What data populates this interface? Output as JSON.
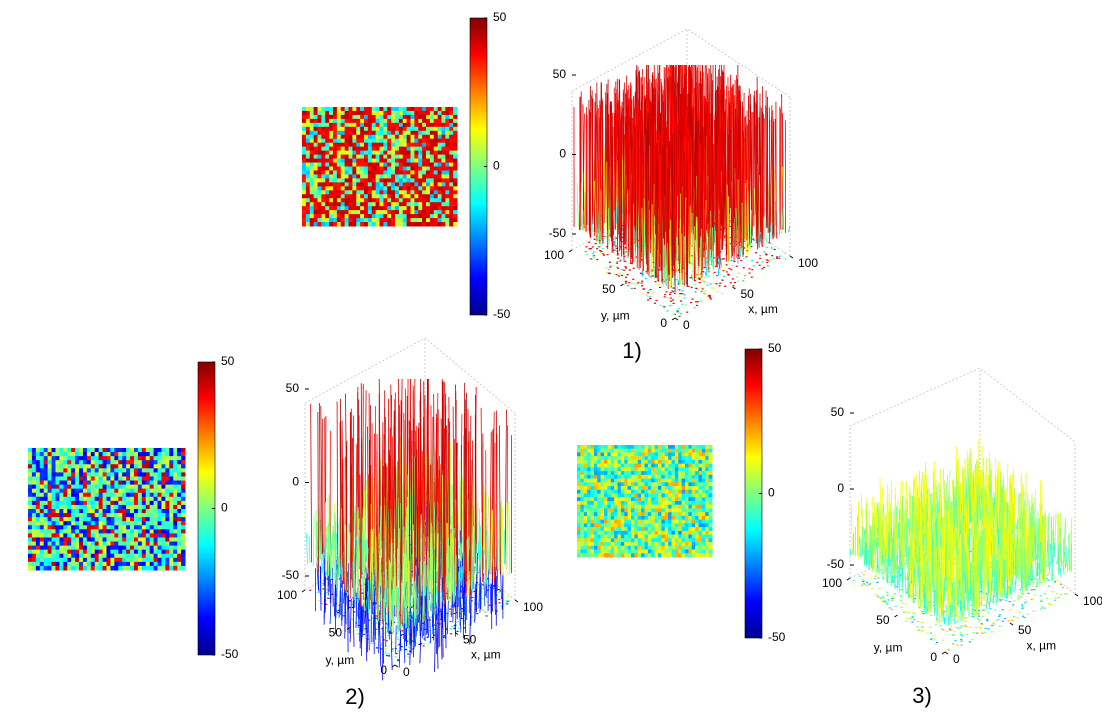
{
  "panels": [
    {
      "label": "1)",
      "colorbar_ticks": [
        -50,
        0,
        50
      ],
      "surface": {
        "zticks": [
          -50,
          0,
          50
        ],
        "xticks": [
          0,
          50,
          100
        ],
        "yticks": [
          0,
          50,
          100
        ],
        "xlabel": "x, µm",
        "ylabel": "y, µm"
      }
    },
    {
      "label": "2)",
      "colorbar_ticks": [
        -50,
        0,
        50
      ],
      "surface": {
        "zticks": [
          -50,
          0,
          50
        ],
        "xticks": [
          0,
          50,
          100
        ],
        "yticks": [
          0,
          50,
          100
        ],
        "xlabel": "x, µm",
        "ylabel": "y, µm"
      }
    },
    {
      "label": "3)",
      "colorbar_ticks": [
        -50,
        0,
        50
      ],
      "surface": {
        "zticks": [
          -50,
          0,
          50
        ],
        "xticks": [
          0,
          50,
          100
        ],
        "yticks": [
          0,
          50,
          100
        ],
        "xlabel": "x, µm",
        "ylabel": "y, µm"
      }
    }
  ]
}
